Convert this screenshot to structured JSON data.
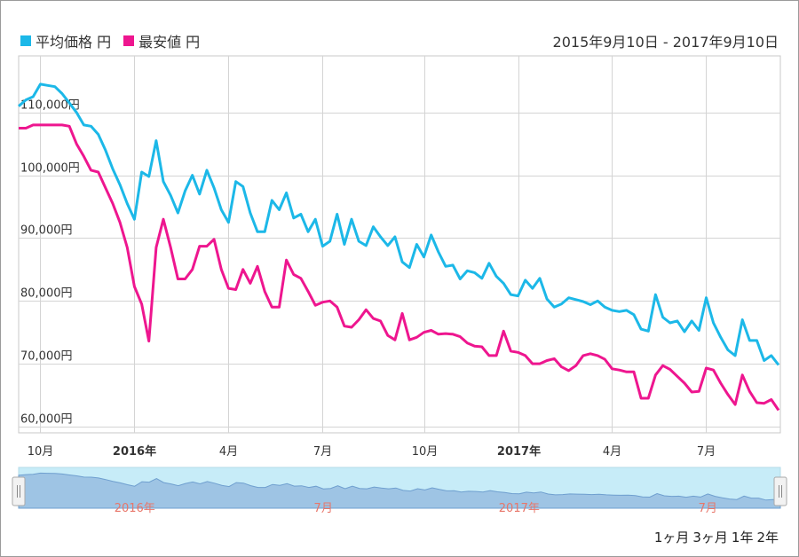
{
  "legend": {
    "series": [
      {
        "name": "平均価格 円",
        "color": "#1cb8e8"
      },
      {
        "name": "最安値 円",
        "color": "#ee168f"
      }
    ]
  },
  "date_range": "2015年9月10日 - 2017年9月10日",
  "range_buttons": [
    "1ヶ月",
    "3ヶ月",
    "1年",
    "2年"
  ],
  "navigator": {
    "labels": [
      "2016年",
      "7月",
      "2017年",
      "7月"
    ]
  },
  "chart_data": {
    "type": "line",
    "x_tick_labels": [
      {
        "label": "10月",
        "index": 3,
        "bold": false
      },
      {
        "label": "2016年",
        "index": 16,
        "bold": true
      },
      {
        "label": "4月",
        "index": 29,
        "bold": false
      },
      {
        "label": "7月",
        "index": 42,
        "bold": false
      },
      {
        "label": "10月",
        "index": 56,
        "bold": false
      },
      {
        "label": "2017年",
        "index": 69,
        "bold": true
      },
      {
        "label": "4月",
        "index": 82,
        "bold": false
      },
      {
        "label": "7月",
        "index": 95,
        "bold": false
      }
    ],
    "y_ticks": [
      60000,
      70000,
      80000,
      90000,
      100000,
      110000
    ],
    "y_tick_labels": [
      "60,000円",
      "70,000円",
      "80,000円",
      "90,000円",
      "100,000円",
      "110,000円"
    ],
    "ylim": [
      59000,
      119000
    ],
    "grid": true,
    "series": [
      {
        "name": "平均価格 円",
        "color": "#1cb8e8",
        "values": [
          111000,
          112000,
          112500,
          114500,
          114300,
          114100,
          113000,
          111500,
          110000,
          108000,
          107800,
          106500,
          104000,
          101000,
          98500,
          95500,
          93000,
          100500,
          99800,
          105500,
          99000,
          96800,
          94000,
          97500,
          100000,
          97000,
          100800,
          98000,
          94500,
          92500,
          99000,
          98200,
          94000,
          91000,
          91000,
          96000,
          94500,
          97200,
          93200,
          93800,
          91000,
          93000,
          88700,
          89500,
          93800,
          89000,
          93000,
          89500,
          88800,
          91800,
          90200,
          88800,
          90200,
          86200,
          85300,
          89000,
          87000,
          90500,
          87800,
          85500,
          85700,
          83500,
          84800,
          84500,
          83600,
          86000,
          83900,
          82800,
          81000,
          80800,
          83300,
          82000,
          83600,
          80300,
          79000,
          79500,
          80500,
          80200,
          79900,
          79400,
          80000,
          79000,
          78500,
          78300,
          78500,
          77800,
          75500,
          75200,
          81000,
          77400,
          76500,
          76800,
          75100,
          76800,
          75300,
          80500,
          76500,
          74200,
          72200,
          71300,
          77000,
          73700,
          73700,
          70500,
          71300,
          69800
        ]
      },
      {
        "name": "最安値 円",
        "color": "#ee168f",
        "values": [
          107500,
          107500,
          108000,
          108000,
          108000,
          108000,
          108000,
          107800,
          105000,
          103000,
          100800,
          100500,
          98000,
          95500,
          92500,
          88500,
          82300,
          79500,
          73600,
          88500,
          93000,
          88500,
          83500,
          83500,
          85000,
          88700,
          88700,
          89800,
          85000,
          82000,
          81800,
          85000,
          82800,
          85500,
          81500,
          79000,
          79000,
          86500,
          84200,
          83600,
          81500,
          79300,
          79800,
          80000,
          79000,
          76000,
          75800,
          77000,
          78600,
          77200,
          76800,
          74500,
          73800,
          78000,
          73800,
          74200,
          75000,
          75300,
          74700,
          74800,
          74700,
          74300,
          73300,
          72800,
          72700,
          71300,
          71300,
          75200,
          72000,
          71800,
          71300,
          70000,
          70000,
          70500,
          70800,
          69500,
          68900,
          69700,
          71300,
          71600,
          71300,
          70700,
          69200,
          69000,
          68700,
          68700,
          64500,
          64500,
          68200,
          69700,
          69100,
          68000,
          66900,
          65500,
          65600,
          69300,
          69000,
          66900,
          65100,
          63500,
          68200,
          65600,
          63800,
          63700,
          64300,
          62600
        ]
      }
    ]
  }
}
